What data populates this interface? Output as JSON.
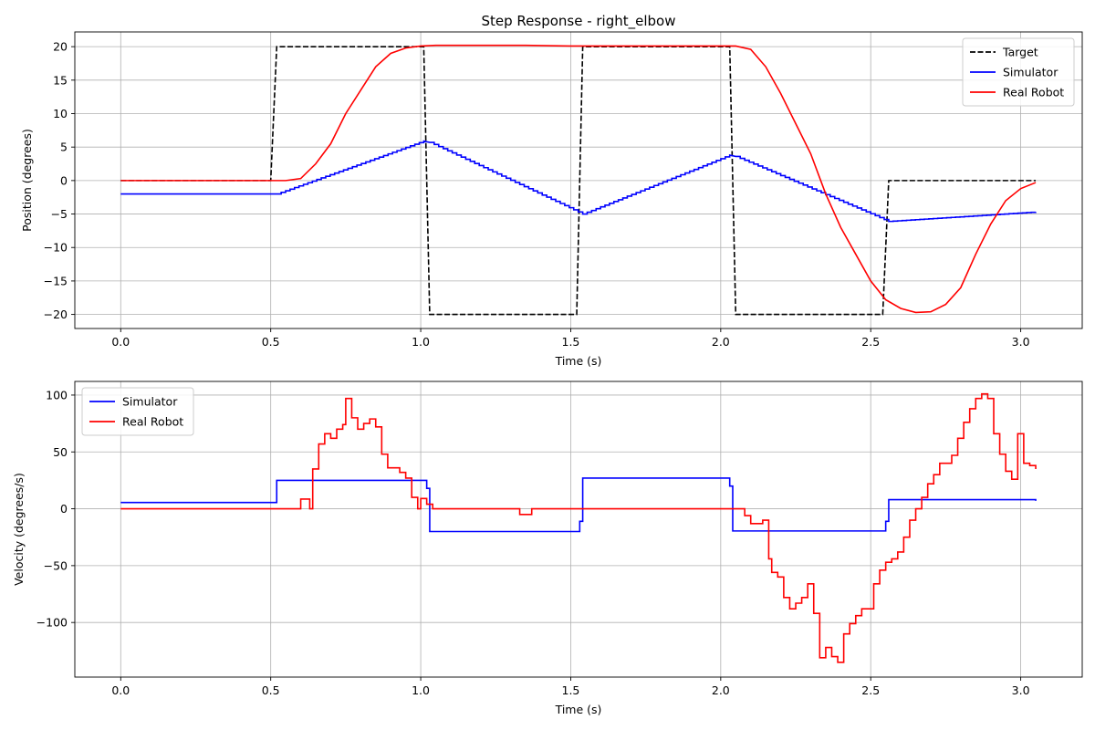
{
  "chart_data": [
    {
      "type": "line",
      "title": "Step Response - right_elbow",
      "xlabel": "Time (s)",
      "ylabel": "Position (degrees)",
      "xlim": [
        -0.153,
        3.205
      ],
      "ylim": [
        -22.1,
        22.2
      ],
      "xticks": [
        0.0,
        0.5,
        1.0,
        1.5,
        2.0,
        2.5,
        3.0
      ],
      "xtick_labels": [
        "0.0",
        "0.5",
        "1.0",
        "1.5",
        "2.0",
        "2.5",
        "3.0"
      ],
      "yticks": [
        20,
        15,
        10,
        5,
        0,
        -5,
        -10,
        -15,
        -20
      ],
      "ytick_labels": [
        "20",
        "15",
        "10",
        "5",
        "0",
        "−5",
        "−10",
        "−15",
        "−20"
      ],
      "grid": true,
      "legend_position": "top-right",
      "series": [
        {
          "name": "Target",
          "color": "#000000",
          "style": "dashed",
          "step": false,
          "x": [
            0,
            0.5,
            0.52,
            1.01,
            1.03,
            1.52,
            1.54,
            2.03,
            2.05,
            2.54,
            2.56,
            3.05
          ],
          "y": [
            0,
            0,
            20,
            20,
            -20,
            -20,
            20,
            20,
            -20,
            -20,
            0,
            0
          ]
        },
        {
          "name": "Simulator",
          "color": "#0000ff",
          "style": "staircase",
          "step": true,
          "x": [
            0,
            0.52,
            1.01,
            1.03,
            1.54,
            2.03,
            2.05,
            2.56,
            3.05
          ],
          "y": [
            -2.0,
            -2.0,
            5.9,
            5.7,
            -5.0,
            3.8,
            3.6,
            -6.1,
            -4.7
          ]
        },
        {
          "name": "Real Robot",
          "color": "#ff0000",
          "style": "solid",
          "step": false,
          "x": [
            0,
            0.55,
            0.6,
            0.65,
            0.7,
            0.75,
            0.8,
            0.85,
            0.9,
            0.95,
            1.0,
            1.05,
            1.2,
            1.35,
            1.5,
            1.8,
            2.0,
            2.05,
            2.1,
            2.15,
            2.2,
            2.25,
            2.3,
            2.35,
            2.4,
            2.45,
            2.5,
            2.55,
            2.6,
            2.65,
            2.7,
            2.75,
            2.8,
            2.85,
            2.9,
            2.95,
            3.0,
            3.05
          ],
          "y": [
            0,
            0,
            0.3,
            2.5,
            5.5,
            10,
            13.5,
            17,
            19,
            19.8,
            20.1,
            20.2,
            20.2,
            20.2,
            20.1,
            20.1,
            20.1,
            20.1,
            19.6,
            17,
            13,
            8.5,
            4,
            -2,
            -7,
            -11,
            -15,
            -17.8,
            -19.1,
            -19.7,
            -19.6,
            -18.5,
            -16,
            -11,
            -6.5,
            -3,
            -1.2,
            -0.3
          ]
        }
      ]
    },
    {
      "type": "line",
      "title": "",
      "xlabel": "Time (s)",
      "ylabel": "Velocity (degrees/s)",
      "xlim": [
        -0.153,
        3.205
      ],
      "ylim": [
        -148,
        112
      ],
      "xticks": [
        0.0,
        0.5,
        1.0,
        1.5,
        2.0,
        2.5,
        3.0
      ],
      "xtick_labels": [
        "0.0",
        "0.5",
        "1.0",
        "1.5",
        "2.0",
        "2.5",
        "3.0"
      ],
      "yticks": [
        100,
        50,
        0,
        -50,
        -100
      ],
      "ytick_labels": [
        "100",
        "50",
        "0",
        "−50",
        "−100"
      ],
      "grid": true,
      "legend_position": "top-left",
      "series": [
        {
          "name": "Simulator",
          "color": "#0000ff",
          "style": "solid",
          "step": true,
          "x": [
            0,
            0.52,
            0.52,
            1.02,
            1.03,
            1.53,
            1.54,
            2.03,
            2.04,
            2.55,
            2.56,
            3.05
          ],
          "y": [
            5.5,
            5.5,
            25,
            18,
            -20,
            -11,
            27,
            20,
            -19.5,
            -11,
            8,
            7
          ]
        },
        {
          "name": "Real Robot",
          "color": "#ff0000",
          "style": "solid",
          "step": true,
          "x": [
            0,
            0.6,
            0.62,
            0.63,
            0.64,
            0.66,
            0.68,
            0.7,
            0.72,
            0.74,
            0.75,
            0.77,
            0.79,
            0.81,
            0.83,
            0.85,
            0.87,
            0.89,
            0.91,
            0.93,
            0.95,
            0.97,
            0.99,
            1.0,
            1.02,
            1.04,
            1.05,
            1.33,
            1.37,
            2.08,
            2.1,
            2.12,
            2.14,
            2.16,
            2.17,
            2.19,
            2.21,
            2.23,
            2.25,
            2.27,
            2.29,
            2.31,
            2.33,
            2.35,
            2.37,
            2.39,
            2.41,
            2.43,
            2.45,
            2.47,
            2.49,
            2.51,
            2.53,
            2.55,
            2.57,
            2.59,
            2.61,
            2.63,
            2.65,
            2.67,
            2.69,
            2.71,
            2.73,
            2.75,
            2.77,
            2.79,
            2.81,
            2.83,
            2.85,
            2.87,
            2.89,
            2.91,
            2.93,
            2.95,
            2.97,
            2.99,
            3.01,
            3.03,
            3.05
          ],
          "y": [
            0,
            8.5,
            8.5,
            0,
            35,
            57,
            66,
            62,
            70,
            74,
            97,
            80,
            70,
            75,
            79,
            72,
            48,
            36,
            36,
            32,
            27,
            10,
            0,
            9,
            4,
            0,
            0,
            -5,
            0,
            -6,
            -13,
            -13,
            -10,
            -44,
            -56,
            -60,
            -78,
            -88,
            -83,
            -78,
            -66,
            -92,
            -131,
            -122,
            -130,
            -135,
            -110,
            -101,
            -94,
            -88,
            -88,
            -66,
            -54,
            -47,
            -44,
            -38,
            -25,
            -10,
            0,
            10,
            22,
            30,
            40,
            40,
            47,
            62,
            76,
            88,
            97,
            101,
            97,
            66,
            48,
            33,
            26,
            66,
            40,
            38,
            35
          ]
        }
      ]
    }
  ]
}
